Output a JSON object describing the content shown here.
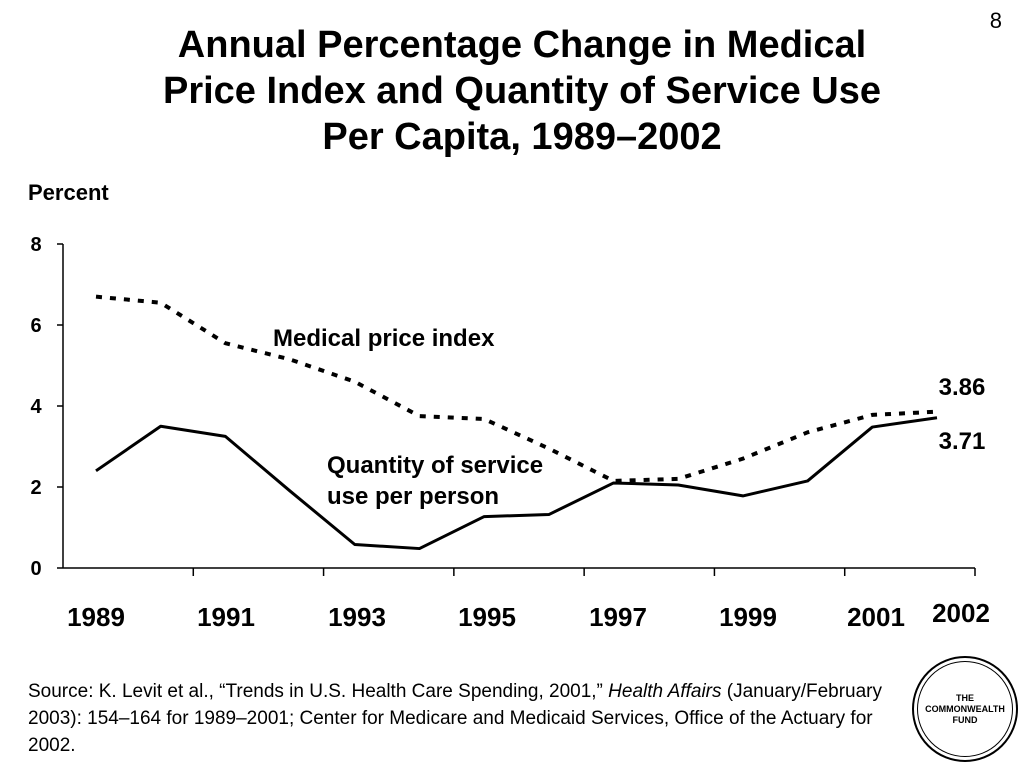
{
  "page_number": "8",
  "title_lines": [
    "Annual Percentage Change in Medical",
    "Price Index and Quantity of Service Use",
    "Per Capita, 1989–2002"
  ],
  "source": {
    "prefix": "Source: K. Levit et al., “Trends in U.S. Health Care Spending, 2001,” ",
    "journal": "Health Affairs",
    "suffix": " (January/February 2003): 154–164 for 1989–2001; Center for Medicare and Medicaid Services, Office of the Actuary for 2002."
  },
  "logo": {
    "lines": [
      "THE",
      "COMMONWEALTH",
      "FUND"
    ]
  },
  "chart_data": {
    "type": "line",
    "title": "Annual Percentage Change in Medical Price Index and Quantity of Service Use Per Capita, 1989–2002",
    "ylabel": "Percent",
    "xlabel": "",
    "ylim": [
      0,
      8
    ],
    "yticks": [
      0,
      2,
      4,
      6,
      8
    ],
    "x": [
      1989,
      1990,
      1991,
      1992,
      1993,
      1994,
      1995,
      1996,
      1997,
      1998,
      1999,
      2000,
      2001,
      2002
    ],
    "xtick_labels": [
      "1989",
      "1991",
      "1993",
      "1995",
      "1997",
      "1999",
      "2001",
      "2002"
    ],
    "series": [
      {
        "name": "Medical price index",
        "style": "dotted",
        "values": [
          6.7,
          6.55,
          5.55,
          5.15,
          4.6,
          3.75,
          3.68,
          2.95,
          2.15,
          2.2,
          2.7,
          3.35,
          3.78,
          3.86
        ],
        "end_label": "3.86"
      },
      {
        "name": "Quantity of service use per person",
        "name_lines": [
          "Quantity of service",
          "use per person"
        ],
        "style": "solid",
        "values": [
          2.4,
          3.5,
          3.25,
          1.9,
          0.58,
          0.48,
          1.27,
          1.32,
          2.1,
          2.05,
          1.78,
          2.15,
          3.48,
          3.71
        ],
        "end_label": "3.71"
      }
    ],
    "grid": false,
    "legend": "inline labels"
  }
}
